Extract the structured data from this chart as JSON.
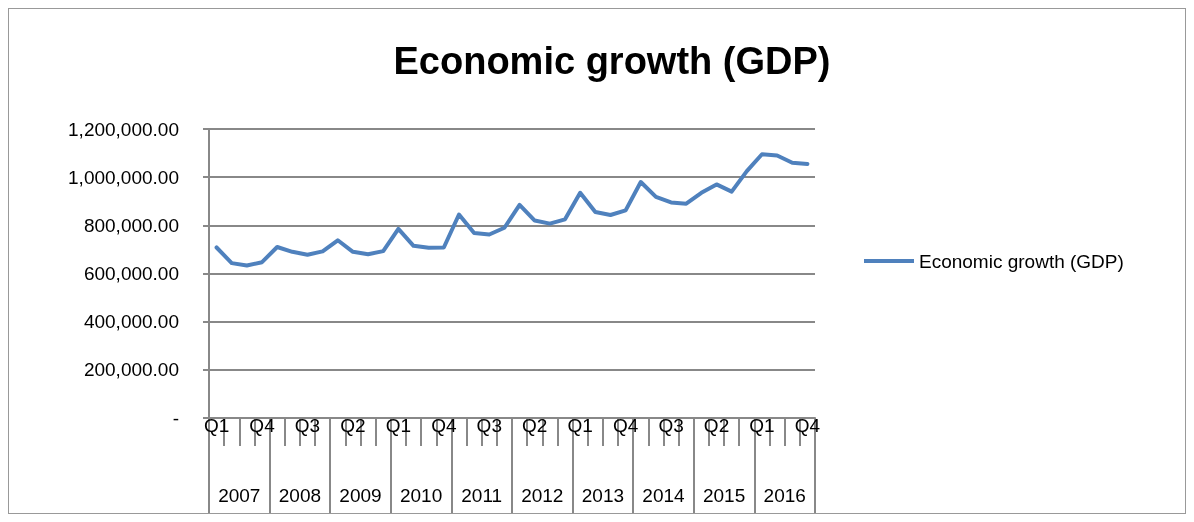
{
  "chart_data": {
    "type": "line",
    "title": "Economic growth (GDP)",
    "categories": [
      "Q1",
      null,
      null,
      "Q4",
      null,
      null,
      "Q3",
      null,
      null,
      "Q2",
      null,
      null,
      "Q1",
      null,
      null,
      "Q4",
      null,
      null,
      "Q3",
      null,
      null,
      "Q2",
      null,
      null,
      "Q1",
      null,
      null,
      "Q4",
      null,
      null,
      "Q3",
      null,
      null,
      "Q2",
      null,
      null,
      "Q1",
      null,
      null,
      "Q4"
    ],
    "annotations": [
      "2007",
      "2008",
      "2009",
      "2010",
      "2011",
      "2012",
      "2013",
      "2014",
      "2015",
      "2016"
    ],
    "series": [
      {
        "name": "Economic growth (GDP)",
        "color": "#4f81bd",
        "values": [
          708000,
          643000,
          633000,
          647000,
          710000,
          690000,
          678000,
          692000,
          738000,
          690000,
          680000,
          693000,
          785000,
          715000,
          707000,
          708000,
          845000,
          768000,
          762000,
          790000,
          885000,
          820000,
          807000,
          825000,
          935000,
          855000,
          843000,
          862000,
          980000,
          918000,
          895000,
          890000,
          935000,
          970000,
          940000,
          1025000,
          1095000,
          1090000,
          1060000,
          1055000
        ]
      }
    ],
    "ylim": [
      0,
      1200000
    ],
    "yticks": [
      {
        "value": 0,
        "label": "-"
      },
      {
        "value": 200000,
        "label": "200,000.00"
      },
      {
        "value": 400000,
        "label": "400,000.00"
      },
      {
        "value": 600000,
        "label": "600,000.00"
      },
      {
        "value": 800000,
        "label": "800,000.00"
      },
      {
        "value": 1000000,
        "label": "1,000,000.00"
      },
      {
        "value": 1200000,
        "label": "1,200,000.00"
      }
    ],
    "grid": "y",
    "legend": "right",
    "marker": "none",
    "line_style": "solid"
  }
}
